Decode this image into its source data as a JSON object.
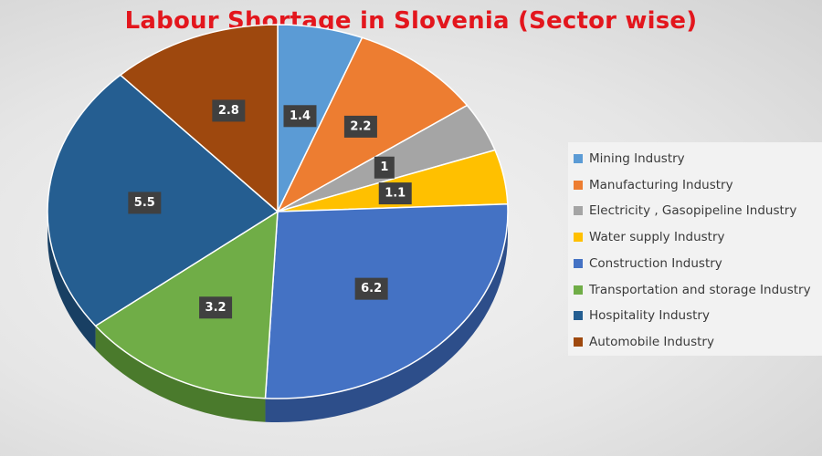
{
  "chart_data": {
    "type": "pie",
    "title": "Labour Shortage in Slovenia (Sector wise)",
    "legend_position": "right",
    "slices": [
      {
        "label": "Mining Industry",
        "value": 1.4,
        "color": "#5b9bd5",
        "side_color": "#3f6f9a",
        "value_label": "1.4"
      },
      {
        "label": "Manufacturing Industry",
        "value": 2.2,
        "color": "#ed7d31",
        "side_color": "#a85820",
        "value_label": "2.2"
      },
      {
        "label": "Electricity , Gasopipeline Industry",
        "value": 1,
        "color": "#a5a5a5",
        "side_color": "#767676",
        "value_label": "1"
      },
      {
        "label": "Water supply Industry",
        "value": 1.1,
        "color": "#ffc000",
        "side_color": "#b58800",
        "value_label": "1.1"
      },
      {
        "label": "Construction Industry",
        "value": 6.2,
        "color": "#4472c4",
        "side_color": "#2d4e8a",
        "value_label": "6.2"
      },
      {
        "label": "Transportation and storage Industry",
        "value": 3.2,
        "color": "#70ad47",
        "side_color": "#4a7a2c",
        "value_label": "3.2"
      },
      {
        "label": "Hospitality Industry",
        "value": 5.5,
        "color": "#255e91",
        "side_color": "#183f63",
        "value_label": "5.5"
      },
      {
        "label": "Automobile Industry",
        "value": 2.8,
        "color": "#9e480e",
        "side_color": "#6b3009",
        "value_label": "2.8"
      }
    ],
    "label_box_color": "#404040"
  }
}
